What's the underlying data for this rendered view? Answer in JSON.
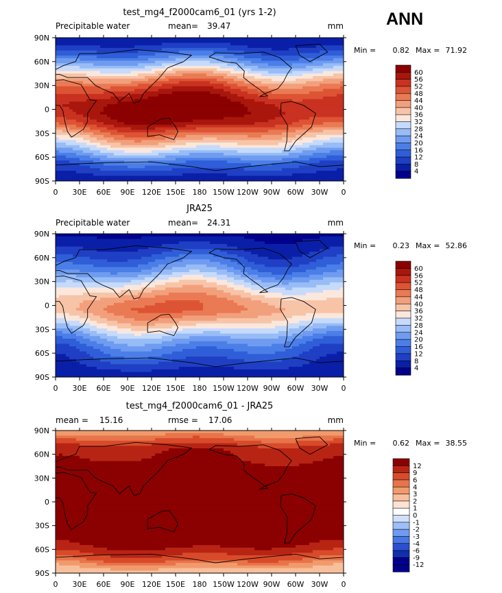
{
  "season": "ANN",
  "chart_data": [
    {
      "type": "heatmap",
      "title": "test_mg4_f2000cam6_01 (yrs 1-2)",
      "left_label": "Precipitable water",
      "stats": [
        {
          "label": "mean=",
          "value": "39.47"
        }
      ],
      "units": "mm",
      "min_label": "Min =",
      "min": "0.82",
      "max_label": "Max =",
      "max": "71.92",
      "levels": [
        "60",
        "56",
        "52",
        "48",
        "44",
        "40",
        "36",
        "32",
        "28",
        "24",
        "20",
        "16",
        "12",
        "8",
        "4"
      ],
      "x_ticks": [
        "0",
        "30E",
        "60E",
        "90E",
        "120E",
        "150E",
        "180",
        "150W",
        "120W",
        "90W",
        "60W",
        "30W",
        "0"
      ],
      "y_ticks": [
        "90N",
        "60N",
        "30N",
        "0",
        "30S",
        "60S",
        "90S"
      ],
      "lat_profile_mm": [
        4,
        9,
        17,
        27,
        38,
        48,
        55,
        60,
        60,
        55,
        45,
        36,
        26,
        16,
        10,
        4
      ]
    },
    {
      "type": "heatmap",
      "title": "JRA25",
      "left_label": "Precipitable water",
      "stats": [
        {
          "label": "mean=",
          "value": "24.31"
        }
      ],
      "units": "mm",
      "min_label": "Min =",
      "min": "0.23",
      "max_label": "Max =",
      "max": "52.86",
      "levels": [
        "60",
        "56",
        "52",
        "48",
        "44",
        "40",
        "36",
        "32",
        "28",
        "24",
        "20",
        "16",
        "12",
        "8",
        "4"
      ],
      "x_ticks": [
        "0",
        "30E",
        "60E",
        "90E",
        "120E",
        "150E",
        "180",
        "150W",
        "120W",
        "90W",
        "60W",
        "30W",
        "0"
      ],
      "y_ticks": [
        "90N",
        "60N",
        "30N",
        "0",
        "30S",
        "60S",
        "90S"
      ],
      "lat_profile_mm": [
        3,
        6,
        10,
        15,
        21,
        29,
        36,
        42,
        44,
        38,
        30,
        22,
        16,
        12,
        8,
        4
      ]
    },
    {
      "type": "heatmap",
      "title": "test_mg4_f2000cam6_01 - JRA25",
      "left_label": "",
      "stats": [
        {
          "label": "mean =",
          "value": "15.16"
        },
        {
          "label": "rmse =",
          "value": "17.06"
        }
      ],
      "units": "mm",
      "min_label": "Min =",
      "min": "0.62",
      "max_label": "Max =",
      "max": "38.55",
      "levels": [
        "12",
        "9",
        "6",
        "4",
        "3",
        "2",
        "1",
        "0",
        "-1",
        "-2",
        "-3",
        "-4",
        "-6",
        "-9",
        "-12"
      ],
      "x_ticks": [
        "0",
        "30E",
        "60E",
        "90E",
        "120E",
        "150E",
        "180",
        "150W",
        "120W",
        "90W",
        "60W",
        "30W",
        "0"
      ],
      "y_ticks": [
        "90N",
        "60N",
        "30N",
        "0",
        "30S",
        "60S",
        "90S"
      ],
      "lat_profile_mm": [
        2,
        4,
        8,
        9,
        12,
        14,
        16,
        16,
        16,
        15,
        14,
        13,
        10,
        6,
        3,
        1
      ]
    }
  ],
  "colors": {
    "pw_scale": [
      "#00008b",
      "#0a1fa8",
      "#1f3fc4",
      "#2f5ed8",
      "#4c7ee8",
      "#6f9cf0",
      "#98bcf6",
      "#c6dafb",
      "#fbe7dc",
      "#f7c4a8",
      "#f2a07c",
      "#ea7a54",
      "#dd5434",
      "#c93120",
      "#a8160c",
      "#8b0000"
    ],
    "diff_scale": [
      "#00008b",
      "#0f2fb0",
      "#2a4fd0",
      "#4877e4",
      "#6f9bf0",
      "#9dbef7",
      "#cfe0fb",
      "#ffffff",
      "#fde3d3",
      "#f8bf9c",
      "#f19a6c",
      "#e7744a",
      "#d84b2a",
      "#b82414",
      "#8b0000"
    ]
  }
}
